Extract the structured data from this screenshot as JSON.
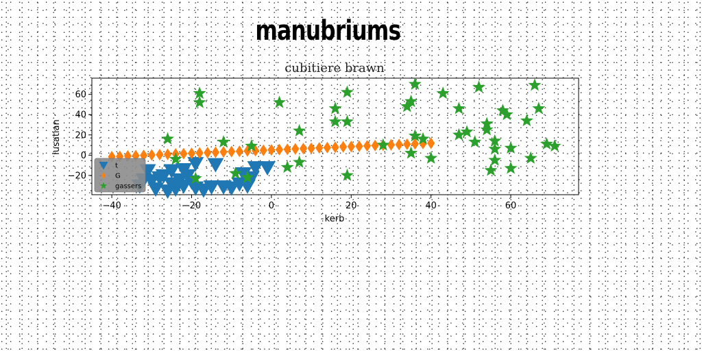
{
  "suptitle": "manubriums",
  "chart_data": {
    "type": "scatter",
    "title": "cubitiere brawn",
    "xlabel": "kerb",
    "ylabel": "lusatian",
    "xlim": [
      -45,
      77
    ],
    "ylim": [
      -39,
      76
    ],
    "xticks": [
      -40,
      -20,
      0,
      20,
      40,
      60
    ],
    "yticks": [
      -20,
      0,
      20,
      40,
      60
    ],
    "grid": false,
    "legend_position": "lower-left",
    "series": [
      {
        "name": "t",
        "marker": "triangle-down",
        "color": "#1f77b4",
        "points": [
          [
            -33,
            -30
          ],
          [
            -32,
            -24
          ],
          [
            -31,
            -15
          ],
          [
            -30,
            -25
          ],
          [
            -29,
            -33
          ],
          [
            -28,
            -22
          ],
          [
            -27,
            -20
          ],
          [
            -26,
            -35
          ],
          [
            -25,
            -15
          ],
          [
            -25,
            -28
          ],
          [
            -24,
            -33
          ],
          [
            -23,
            -24
          ],
          [
            -22,
            -14
          ],
          [
            -22,
            -30
          ],
          [
            -21,
            -20
          ],
          [
            -20,
            -26
          ],
          [
            -19,
            -32
          ],
          [
            -19,
            -8
          ],
          [
            -17,
            -34
          ],
          [
            -15,
            -31
          ],
          [
            -14,
            -9
          ],
          [
            -12,
            -31
          ],
          [
            -10,
            -32
          ],
          [
            -8,
            -28
          ],
          [
            -7,
            -18
          ],
          [
            -6,
            -30
          ],
          [
            -5,
            -22
          ],
          [
            -4,
            -12
          ],
          [
            -1,
            -12
          ]
        ]
      },
      {
        "name": "G",
        "marker": "diamond",
        "color": "#ff7f0e",
        "points": [
          [
            -40,
            -1.5
          ],
          [
            -38,
            -1.2
          ],
          [
            -36,
            -0.8
          ],
          [
            -34,
            -0.5
          ],
          [
            -32,
            -0.2
          ],
          [
            -30,
            0.2
          ],
          [
            -28,
            0.5
          ],
          [
            -26,
            0.8
          ],
          [
            -24,
            1.2
          ],
          [
            -22,
            1.5
          ],
          [
            -20,
            1.8
          ],
          [
            -18,
            2.2
          ],
          [
            -16,
            2.5
          ],
          [
            -14,
            2.8
          ],
          [
            -12,
            3.2
          ],
          [
            -10,
            3.5
          ],
          [
            -8,
            3.8
          ],
          [
            -6,
            4.2
          ],
          [
            -4,
            4.5
          ],
          [
            -2,
            4.8
          ],
          [
            0,
            5.2
          ],
          [
            2,
            5.5
          ],
          [
            4,
            5.8
          ],
          [
            6,
            6.2
          ],
          [
            8,
            6.5
          ],
          [
            10,
            6.8
          ],
          [
            12,
            7.2
          ],
          [
            14,
            7.5
          ],
          [
            16,
            7.8
          ],
          [
            18,
            8.2
          ],
          [
            20,
            8.5
          ],
          [
            22,
            8.8
          ],
          [
            24,
            9.2
          ],
          [
            26,
            9.5
          ],
          [
            28,
            9.8
          ],
          [
            30,
            10.2
          ],
          [
            32,
            10.5
          ],
          [
            34,
            10.8
          ],
          [
            36,
            11.2
          ],
          [
            38,
            11.5
          ],
          [
            40,
            11.8
          ]
        ]
      },
      {
        "name": "gassers",
        "marker": "star",
        "color": "#2ca02c",
        "points": [
          [
            -26,
            16
          ],
          [
            -24,
            -4
          ],
          [
            -19,
            -23
          ],
          [
            -18,
            61
          ],
          [
            -18,
            52
          ],
          [
            -12,
            13
          ],
          [
            -9,
            -18
          ],
          [
            -6,
            -22
          ],
          [
            -5,
            9
          ],
          [
            2,
            52
          ],
          [
            4,
            -12
          ],
          [
            7,
            24
          ],
          [
            7,
            -7
          ],
          [
            16,
            46
          ],
          [
            16,
            33
          ],
          [
            19,
            62
          ],
          [
            19,
            33
          ],
          [
            19,
            -20
          ],
          [
            28,
            10
          ],
          [
            34,
            48
          ],
          [
            35,
            2
          ],
          [
            35,
            53
          ],
          [
            36,
            70
          ],
          [
            36,
            19
          ],
          [
            38,
            16
          ],
          [
            40,
            -3
          ],
          [
            43,
            61
          ],
          [
            47,
            46
          ],
          [
            47,
            20
          ],
          [
            49,
            23
          ],
          [
            52,
            67
          ],
          [
            51,
            13
          ],
          [
            54,
            25
          ],
          [
            54,
            31
          ],
          [
            55,
            -15
          ],
          [
            56,
            14
          ],
          [
            56,
            -5
          ],
          [
            56,
            6
          ],
          [
            58,
            44
          ],
          [
            59,
            40
          ],
          [
            60,
            7
          ],
          [
            60,
            -13
          ],
          [
            64,
            34
          ],
          [
            65,
            -3
          ],
          [
            66,
            69
          ],
          [
            67,
            46
          ],
          [
            69,
            11
          ],
          [
            71,
            9
          ]
        ]
      }
    ]
  }
}
